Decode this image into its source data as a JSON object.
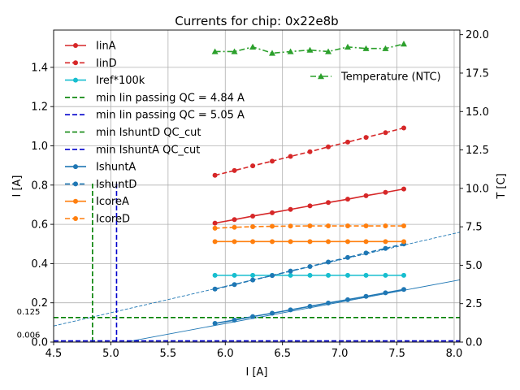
{
  "chart_data": {
    "type": "line",
    "title": "Currents for chip: 0x22e8b",
    "xlabel": "I [A]",
    "ylabel": "I [A]",
    "ylabel_right": "T [C]",
    "xlim": [
      4.5,
      8.05
    ],
    "ylim": [
      0.0,
      1.59
    ],
    "ylim_right": [
      0.0,
      20.3
    ],
    "grid": true,
    "x_ticks": [
      "4.5",
      "5.0",
      "5.5",
      "6.0",
      "6.5",
      "7.0",
      "7.5",
      "8.0"
    ],
    "x_tick_values": [
      4.5,
      5.0,
      5.5,
      6.0,
      6.5,
      7.0,
      7.5,
      8.0
    ],
    "y_ticks": [
      "0.0",
      "0.2",
      "0.4",
      "0.6",
      "0.8",
      "1.0",
      "1.2",
      "1.4"
    ],
    "y_tick_values": [
      0.0,
      0.2,
      0.4,
      0.6,
      0.8,
      1.0,
      1.2,
      1.4
    ],
    "y_ticks_right": [
      "0.0",
      "2.5",
      "5.0",
      "7.5",
      "10.0",
      "12.5",
      "15.0",
      "17.5",
      "20.0"
    ],
    "y_tick_values_right": [
      0.0,
      2.5,
      5.0,
      7.5,
      10.0,
      12.5,
      15.0,
      17.5,
      20.0
    ],
    "x": [
      5.91,
      6.08,
      6.24,
      6.41,
      6.57,
      6.74,
      6.9,
      7.07,
      7.23,
      7.4,
      7.56
    ],
    "series": [
      {
        "name": "IinA",
        "color": "#d62728",
        "dash": "solid",
        "marker": "circle",
        "values": [
          0.606,
          0.624,
          0.642,
          0.659,
          0.676,
          0.694,
          0.711,
          0.728,
          0.746,
          0.763,
          0.78
        ]
      },
      {
        "name": "IinD",
        "color": "#d62728",
        "dash": "dashed",
        "marker": "circle",
        "values": [
          0.85,
          0.874,
          0.898,
          0.922,
          0.946,
          0.97,
          0.995,
          1.019,
          1.043,
          1.067,
          1.091
        ]
      },
      {
        "name": "Iref*100k",
        "color": "#17becf",
        "dash": "solid",
        "marker": "circle",
        "values": [
          0.34,
          0.34,
          0.34,
          0.34,
          0.34,
          0.34,
          0.34,
          0.34,
          0.34,
          0.34,
          0.34
        ]
      },
      {
        "name": "IshuntA",
        "color": "#1f77b4",
        "dash": "solid",
        "marker": "circle",
        "values": [
          0.095,
          0.112,
          0.13,
          0.147,
          0.164,
          0.182,
          0.199,
          0.216,
          0.233,
          0.251,
          0.268
        ]
      },
      {
        "name": "IshuntD",
        "color": "#1f77b4",
        "dash": "dashed",
        "marker": "circle",
        "values": [
          0.27,
          0.293,
          0.316,
          0.339,
          0.362,
          0.385,
          0.408,
          0.431,
          0.454,
          0.477,
          0.5
        ]
      },
      {
        "name": "IcoreA",
        "color": "#ff7f0e",
        "dash": "solid",
        "marker": "circle",
        "values": [
          0.512,
          0.512,
          0.512,
          0.512,
          0.512,
          0.512,
          0.512,
          0.512,
          0.512,
          0.512,
          0.512
        ]
      },
      {
        "name": "IcoreD",
        "color": "#ff7f0e",
        "dash": "dashed",
        "marker": "circle",
        "values": [
          0.58,
          0.585,
          0.588,
          0.59,
          0.591,
          0.592,
          0.592,
          0.592,
          0.592,
          0.592,
          0.592
        ]
      }
    ],
    "right_series": [
      {
        "name": "Temperature (NTC)",
        "color": "#2ca02c",
        "dash": "dashdot",
        "marker": "triangle",
        "values": [
          18.9,
          18.9,
          19.2,
          18.8,
          18.9,
          19.0,
          18.9,
          19.2,
          19.1,
          19.1,
          19.4
        ]
      }
    ],
    "fit_lines": [
      {
        "name": "IshuntA fit",
        "color": "#1f77b4",
        "dash": "solid",
        "x": [
          5.0,
          8.05
        ],
        "y": [
          -0.014,
          0.317
        ]
      },
      {
        "name": "IshuntD fit",
        "color": "#1f77b4",
        "dash": "dashed",
        "x": [
          4.5,
          8.05
        ],
        "y": [
          0.082,
          0.56
        ]
      }
    ],
    "qc_lines": [
      {
        "name": "min Iin passing QC = 4.84 A",
        "color": "#008000",
        "orientation": "vertical",
        "value": 4.84,
        "ymax": 0.815
      },
      {
        "name": "min Iin passing QC = 5.05 A",
        "color": "#0000cc",
        "orientation": "vertical",
        "value": 5.05,
        "ymax": 0.815
      },
      {
        "name": "min IshuntD QC_cut",
        "color": "#008000",
        "orientation": "horizontal",
        "value": 0.125,
        "label": "0.125"
      },
      {
        "name": "min IshuntA QC_cut",
        "color": "#0000cc",
        "orientation": "horizontal",
        "value": 0.006,
        "label": "0.006"
      }
    ],
    "legend_order": [
      "IinA",
      "IinD",
      "Iref*100k",
      "min Iin passing QC = 4.84 A",
      "min Iin passing QC = 5.05 A",
      "min IshuntD QC_cut",
      "min IshuntA QC_cut",
      "IshuntA",
      "IshuntD",
      "IcoreA",
      "IcoreD"
    ],
    "legend_placement": "upper-left",
    "legend_right_placement": "upper-right"
  }
}
